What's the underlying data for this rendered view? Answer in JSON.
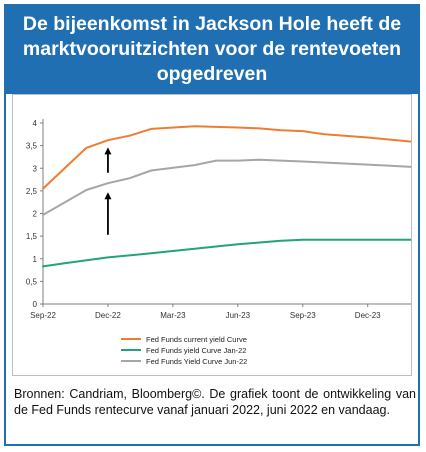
{
  "header": {
    "title_lines": [
      "De bijeenkomst in Jackson Hole heeft de",
      "marktvooruitzichten voor de rentevoeten",
      "opgedreven"
    ]
  },
  "chart_data": {
    "type": "line",
    "x_labels": [
      "Sep-22",
      "Dec-22",
      "Mar-23",
      "Jun-23",
      "Sep-23",
      "Dec-23"
    ],
    "y_ticks": [
      "0",
      "0,5",
      "1",
      "1,5",
      "2",
      "2,5",
      "3",
      "3,5",
      "4"
    ],
    "ylim": [
      0,
      4
    ],
    "xlim": [
      "Sep-22",
      "Feb-24"
    ],
    "grid": false,
    "legend_position": "bottom",
    "annotations": [
      "upward arrows from Jan-22 curve to Jun-22 curve and from Jun-22 curve to current curve"
    ],
    "series": [
      {
        "name": "Fed Funds current yield Curve",
        "color": "#ed7d31",
        "points": [
          [
            "Sep-22",
            2.55
          ],
          [
            "Nov-22",
            3.45
          ],
          [
            "Dec-22",
            3.62
          ],
          [
            "Jan-23",
            3.72
          ],
          [
            "Feb-23",
            3.87
          ],
          [
            "Apr-23",
            3.93
          ],
          [
            "Jun-23",
            3.9
          ],
          [
            "Jul-23",
            3.88
          ],
          [
            "Aug-23",
            3.84
          ],
          [
            "Sep-23",
            3.82
          ],
          [
            "Oct-23",
            3.75
          ],
          [
            "Dec-23",
            3.68
          ],
          [
            "Feb-24",
            3.59
          ]
        ]
      },
      {
        "name": "Fed Funds yield Curve Jan-22",
        "color": "#23a37a",
        "points": [
          [
            "Sep-22",
            0.83
          ],
          [
            "Oct-22",
            0.9
          ],
          [
            "Dec-22",
            1.03
          ],
          [
            "Feb-23",
            1.12
          ],
          [
            "Apr-23",
            1.22
          ],
          [
            "Jun-23",
            1.32
          ],
          [
            "Jul-23",
            1.36
          ],
          [
            "Aug-23",
            1.4
          ],
          [
            "Sep-23",
            1.42
          ],
          [
            "Dec-23",
            1.42
          ],
          [
            "Feb-24",
            1.42
          ]
        ]
      },
      {
        "name": "Fed Funds Yield Curve Jun-22",
        "color": "#a6a6a6",
        "points": [
          [
            "Sep-22",
            1.97
          ],
          [
            "Nov-22",
            2.52
          ],
          [
            "Dec-22",
            2.67
          ],
          [
            "Jan-23",
            2.78
          ],
          [
            "Feb-23",
            2.95
          ],
          [
            "Apr-23",
            3.07
          ],
          [
            "May-23",
            3.17
          ],
          [
            "Jun-23",
            3.17
          ],
          [
            "Jul-23",
            3.19
          ],
          [
            "Aug-23",
            3.17
          ],
          [
            "Sep-23",
            3.15
          ],
          [
            "Dec-23",
            3.08
          ],
          [
            "Feb-24",
            3.03
          ]
        ]
      }
    ]
  },
  "footer": {
    "source_text": "Bronnen: Candriam, Bloomberg©. De grafiek toont de ontwikkeling van de Fed Funds rentecurve vanaf januari 2022, juni 2022 en vandaag."
  }
}
